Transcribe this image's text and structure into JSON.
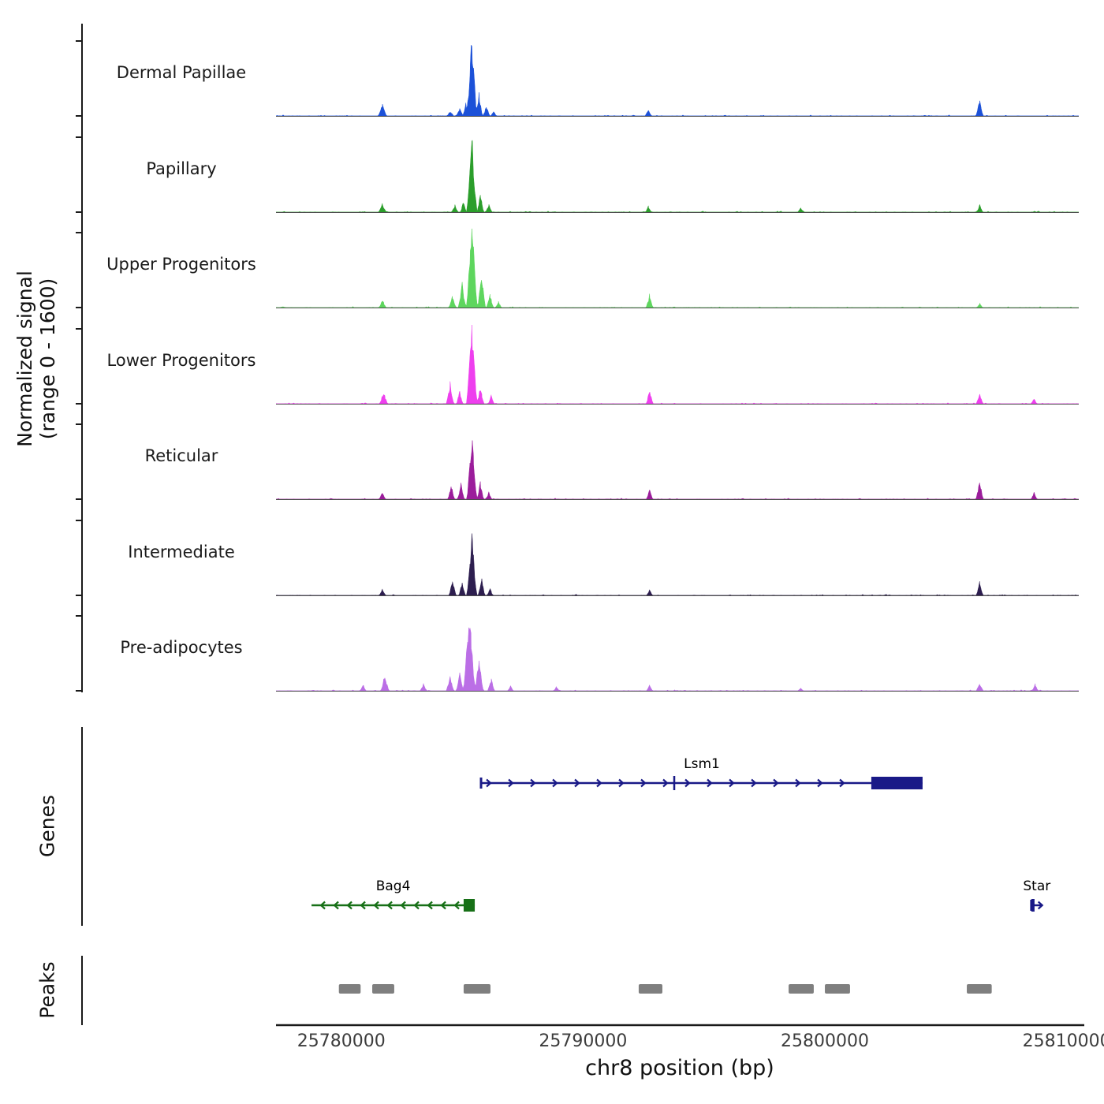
{
  "ylabel": {
    "line1": "Normalized signal",
    "line2": "(range 0 - 1600)"
  },
  "section_labels": {
    "genes": "Genes",
    "peaks": "Peaks"
  },
  "xaxis": {
    "label": "chr8 position (bp)",
    "domain": [
      25777300,
      25810500
    ],
    "ticks": [
      25780000,
      25790000,
      25800000,
      25810000
    ],
    "tick_labels": [
      "25780000",
      "25790000",
      "25800000",
      "25810000"
    ]
  },
  "chart_data": {
    "type": "area",
    "subtype": "genome-browser-signal-tracks",
    "signal_range": [
      0,
      1600
    ],
    "x_unit": "bp (chr8)",
    "tracks": [
      {
        "label": "Dermal Papillae",
        "color": "#1c51d8",
        "peaks": [
          [
            25781700,
            200,
            180
          ],
          [
            25784500,
            90,
            150
          ],
          [
            25784900,
            150,
            150
          ],
          [
            25785150,
            230,
            120
          ],
          [
            25785400,
            1470,
            220
          ],
          [
            25785700,
            420,
            140
          ],
          [
            25786000,
            180,
            150
          ],
          [
            25786300,
            90,
            130
          ],
          [
            25792700,
            130,
            140
          ],
          [
            25806400,
            290,
            160
          ]
        ]
      },
      {
        "label": "Papillary",
        "color": "#2b9e2b",
        "peaks": [
          [
            25781700,
            160,
            160
          ],
          [
            25784700,
            120,
            150
          ],
          [
            25785050,
            190,
            130
          ],
          [
            25785400,
            1360,
            220
          ],
          [
            25785750,
            380,
            140
          ],
          [
            25786100,
            150,
            140
          ],
          [
            25792700,
            110,
            130
          ],
          [
            25799000,
            90,
            130
          ],
          [
            25806400,
            130,
            140
          ]
        ]
      },
      {
        "label": "Upper Progenitors",
        "color": "#5ed65e",
        "peaks": [
          [
            25781700,
            150,
            160
          ],
          [
            25784600,
            200,
            160
          ],
          [
            25785000,
            430,
            170
          ],
          [
            25785400,
            1600,
            240
          ],
          [
            25785800,
            700,
            170
          ],
          [
            25786150,
            260,
            150
          ],
          [
            25786500,
            110,
            130
          ],
          [
            25792750,
            230,
            150
          ],
          [
            25806400,
            80,
            130
          ]
        ]
      },
      {
        "label": "Lower Progenitors",
        "color": "#ee3fee",
        "peaks": [
          [
            25781750,
            230,
            170
          ],
          [
            25784500,
            380,
            160
          ],
          [
            25784900,
            250,
            140
          ],
          [
            25785400,
            1470,
            230
          ],
          [
            25785750,
            330,
            150
          ],
          [
            25786200,
            140,
            130
          ],
          [
            25792750,
            260,
            150
          ],
          [
            25806400,
            190,
            150
          ],
          [
            25808650,
            100,
            130
          ]
        ]
      },
      {
        "label": "Reticular",
        "color": "#9b1d9b",
        "peaks": [
          [
            25781700,
            130,
            150
          ],
          [
            25784550,
            260,
            150
          ],
          [
            25784950,
            280,
            140
          ],
          [
            25785400,
            1150,
            220
          ],
          [
            25785750,
            300,
            150
          ],
          [
            25786100,
            130,
            130
          ],
          [
            25792750,
            190,
            140
          ],
          [
            25806400,
            350,
            160
          ],
          [
            25808650,
            130,
            130
          ]
        ]
      },
      {
        "label": "Intermediate",
        "color": "#2d1e4f",
        "peaks": [
          [
            25781700,
            110,
            150
          ],
          [
            25784600,
            340,
            150
          ],
          [
            25785000,
            280,
            140
          ],
          [
            25785400,
            1120,
            220
          ],
          [
            25785800,
            330,
            150
          ],
          [
            25786150,
            130,
            130
          ],
          [
            25792750,
            100,
            130
          ],
          [
            25806400,
            240,
            150
          ]
        ]
      },
      {
        "label": "Pre-adipocytes",
        "color": "#bb6ee6",
        "peaks": [
          [
            25780900,
            100,
            140
          ],
          [
            25781800,
            300,
            180
          ],
          [
            25783400,
            130,
            150
          ],
          [
            25784500,
            260,
            160
          ],
          [
            25784900,
            330,
            160
          ],
          [
            25785300,
            1520,
            260
          ],
          [
            25785700,
            650,
            180
          ],
          [
            25786200,
            230,
            150
          ],
          [
            25787000,
            90,
            130
          ],
          [
            25788900,
            70,
            130
          ],
          [
            25792750,
            110,
            140
          ],
          [
            25799000,
            60,
            120
          ],
          [
            25806400,
            150,
            140
          ],
          [
            25808700,
            130,
            130
          ]
        ]
      }
    ],
    "genes": [
      {
        "name": "Lsm1",
        "color": "#191987",
        "strand": "+",
        "start": 25785780,
        "end": 25804040,
        "exons": [
          [
            25801920,
            25804040
          ]
        ],
        "start_tick": true,
        "mid_ticks": [
          25793770
        ],
        "row": 0
      },
      {
        "name": "Bag4",
        "color": "#177017",
        "strand": "-",
        "start": 25778770,
        "end": 25785520,
        "exons": [
          [
            25785060,
            25785520
          ]
        ],
        "start_tick": false,
        "mid_ticks": [],
        "row": 1
      },
      {
        "name": "Star",
        "color": "#191987",
        "strand": "+",
        "start": 25808540,
        "end": 25808990,
        "exons": [
          [
            25808540,
            25808660
          ]
        ],
        "start_tick": true,
        "mid_ticks": [],
        "row": 1
      }
    ],
    "peak_regions": [
      [
        25779900,
        25780800
      ],
      [
        25781280,
        25782190
      ],
      [
        25785060,
        25786170
      ],
      [
        25792300,
        25793280
      ],
      [
        25798500,
        25799540
      ],
      [
        25800000,
        25801040
      ],
      [
        25805870,
        25806900
      ]
    ],
    "peak_color": "#7f7f7f"
  }
}
